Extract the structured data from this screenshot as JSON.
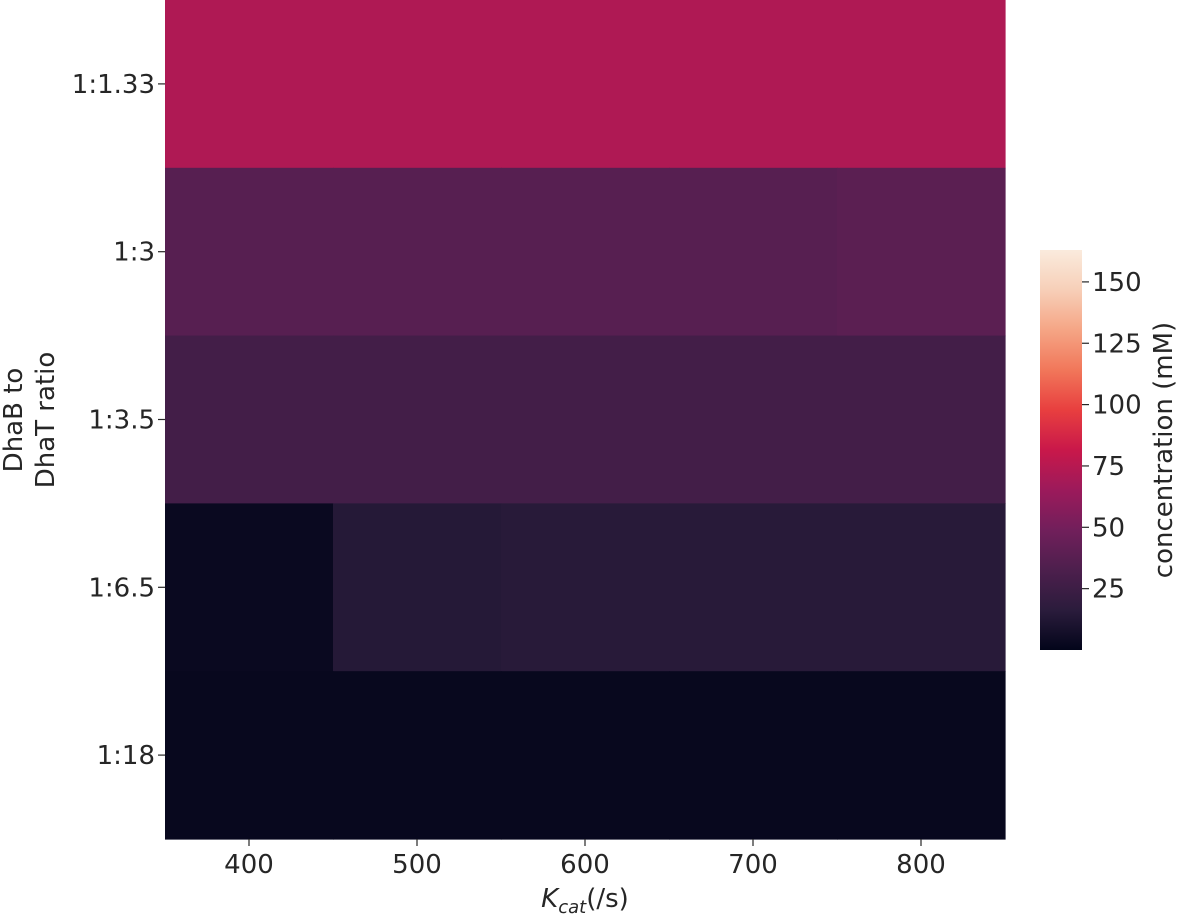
{
  "chart_data": {
    "type": "heatmap",
    "title": "",
    "xlabel_main": "K",
    "xlabel_sub": "cat",
    "xlabel_suffix": "(/s)",
    "ylabel_line1": "DhaB to",
    "ylabel_line2": "DhaT ratio",
    "x": [
      400,
      500,
      600,
      700,
      800
    ],
    "y": [
      "1:1.33",
      "1:3",
      "1:3.5",
      "1:6.5",
      "1:18"
    ],
    "values": [
      [
        72,
        72,
        72,
        72,
        72
      ],
      [
        37,
        37,
        37,
        37,
        39
      ],
      [
        28,
        28,
        28,
        28,
        28
      ],
      [
        3,
        14,
        15,
        15,
        15
      ],
      [
        2,
        2,
        2,
        2,
        2
      ]
    ],
    "colorbar": {
      "label": "concentration (mM)",
      "min": 0,
      "max": 163,
      "ticks": [
        25,
        50,
        75,
        100,
        125,
        150
      ],
      "colormap": "rocket",
      "stops": [
        "#03051a",
        "#2b1c3c",
        "#4d1f4d",
        "#711f5b",
        "#9c1a5b",
        "#c9184a",
        "#e83f3f",
        "#f1775a",
        "#f5a585",
        "#f7cfb8",
        "#faebdd"
      ]
    }
  }
}
